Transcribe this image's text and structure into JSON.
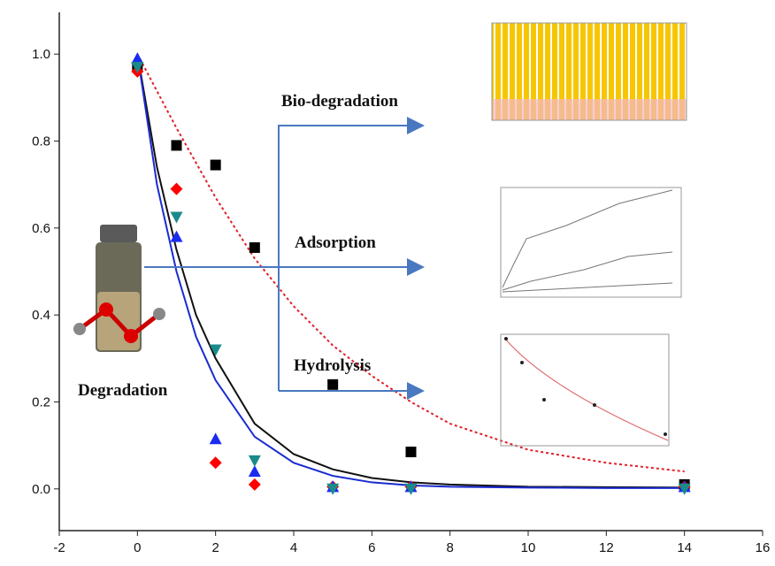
{
  "chart_data": {
    "type": "scatter",
    "xlim": [
      -2,
      16
    ],
    "ylim": [
      -0.096,
      1.096
    ],
    "xticks": [
      -2,
      0,
      2,
      4,
      6,
      8,
      10,
      12,
      14,
      16
    ],
    "yticks": [
      {
        "value": 0,
        "label": "0.0"
      },
      {
        "value": 0.2,
        "label": "0.2"
      },
      {
        "value": 0.4,
        "label": "0.4"
      },
      {
        "value": 0.6,
        "label": "0.6"
      },
      {
        "value": 0.8,
        "label": "0.8"
      },
      {
        "value": 1.0,
        "label": "1.0"
      }
    ],
    "annotations": [
      "Bio-degradation",
      "Adsorption",
      "Hydrolysis",
      "Degradation"
    ],
    "series": [
      {
        "kind": "line",
        "color": "#e0202a",
        "style": "dashed",
        "x": [
          0,
          1,
          2,
          3,
          4,
          5,
          6,
          7,
          8,
          10,
          12,
          14
        ],
        "values": [
          1.0,
          0.83,
          0.67,
          0.53,
          0.42,
          0.33,
          0.26,
          0.2,
          0.15,
          0.09,
          0.06,
          0.04
        ]
      },
      {
        "kind": "line",
        "color": "#111111",
        "style": "solid",
        "x": [
          0,
          0.5,
          1,
          1.5,
          2,
          3,
          4,
          5,
          6,
          7,
          8,
          10,
          12,
          14
        ],
        "values": [
          1.0,
          0.74,
          0.55,
          0.4,
          0.3,
          0.15,
          0.08,
          0.045,
          0.025,
          0.015,
          0.01,
          0.005,
          0.004,
          0.003
        ]
      },
      {
        "kind": "line",
        "color": "#1a2bd0",
        "style": "solid",
        "x": [
          0,
          0.5,
          1,
          1.5,
          2,
          3,
          4,
          5,
          6,
          7,
          8,
          10,
          12,
          14
        ],
        "values": [
          1.0,
          0.7,
          0.5,
          0.35,
          0.25,
          0.12,
          0.06,
          0.03,
          0.015,
          0.008,
          0.005,
          0.003,
          0.002,
          0.002
        ]
      },
      {
        "kind": "points",
        "marker": "square",
        "color": "#000000",
        "x": [
          0,
          1,
          2,
          3,
          5,
          7,
          14
        ],
        "values": [
          0.97,
          0.79,
          0.745,
          0.555,
          0.24,
          0.085,
          0.01
        ]
      },
      {
        "kind": "points",
        "marker": "diamond",
        "color": "#ff0000",
        "x": [
          0,
          1,
          2,
          3,
          5,
          7,
          14
        ],
        "values": [
          0.96,
          0.69,
          0.06,
          0.01,
          0.005,
          0.005,
          0.005
        ]
      },
      {
        "kind": "points",
        "marker": "triangle",
        "color": "#1a2bf0",
        "x": [
          0,
          1,
          2,
          3,
          5,
          7,
          14
        ],
        "values": [
          0.99,
          0.58,
          0.115,
          0.04,
          0.005,
          0.005,
          0.005
        ]
      },
      {
        "kind": "points",
        "marker": "triangle-down",
        "color": "#1a8a8a",
        "x": [
          0,
          1,
          2,
          3,
          5,
          7,
          14
        ],
        "values": [
          0.97,
          0.625,
          0.32,
          0.065,
          0,
          0,
          0
        ]
      }
    ]
  }
}
